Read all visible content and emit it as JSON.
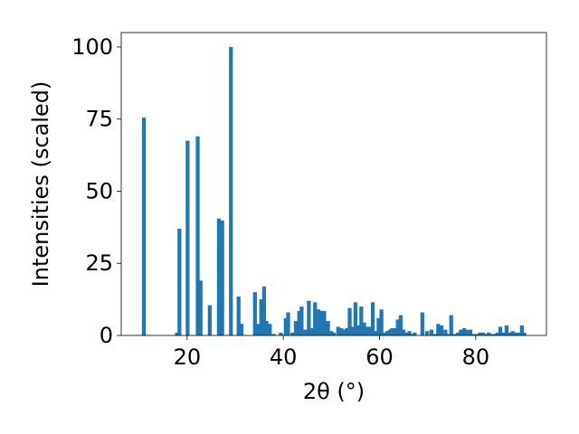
{
  "chart_data": {
    "type": "bar",
    "title": "",
    "xlabel": "2θ (°)",
    "ylabel": "Intensities (scaled)",
    "xlim": [
      6.3,
      94.7
    ],
    "ylim": [
      0,
      105
    ],
    "xticks": [
      20,
      40,
      60,
      80
    ],
    "yticks": [
      0,
      25,
      50,
      75,
      100
    ],
    "bar_width": 0.8,
    "color": "#1f77b4",
    "grid": false,
    "legend": "none",
    "x": [
      11.0,
      17.9,
      18.4,
      20.1,
      22.2,
      22.8,
      24.7,
      26.6,
      27.3,
      29.1,
      30.7,
      31.3,
      34.1,
      34.8,
      35.4,
      36.0,
      36.5,
      37.2,
      38.0,
      39.5,
      40.5,
      41.0,
      41.9,
      42.6,
      43.3,
      43.8,
      44.6,
      45.3,
      45.9,
      46.6,
      47.3,
      47.9,
      48.5,
      49.3,
      50.0,
      50.5,
      51.4,
      52.1,
      52.7,
      53.2,
      53.8,
      54.4,
      55.0,
      55.6,
      56.2,
      56.8,
      57.4,
      58.0,
      58.6,
      59.2,
      59.8,
      60.4,
      61.0,
      61.6,
      62.1,
      62.6,
      63.2,
      63.8,
      64.4,
      65.0,
      65.6,
      66.2,
      66.7,
      67.3,
      68.9,
      69.9,
      70.8,
      71.6,
      72.2,
      72.9,
      73.7,
      74.3,
      74.9,
      75.5,
      76.3,
      76.9,
      77.6,
      78.1,
      78.9,
      79.6,
      80.3,
      80.9,
      81.5,
      82.1,
      82.7,
      83.3,
      83.9,
      84.5,
      85.1,
      85.7,
      86.4,
      87.1,
      87.7,
      88.3,
      88.9,
      89.6,
      90.1
    ],
    "values": [
      75.5,
      1.0,
      37.0,
      67.5,
      69.0,
      19.0,
      10.5,
      40.5,
      39.8,
      100.0,
      13.5,
      4.0,
      15.0,
      4.0,
      12.5,
      17.0,
      5.0,
      4.0,
      0.5,
      1.0,
      6.0,
      8.0,
      1.0,
      5.0,
      8.5,
      10.0,
      2.0,
      12.0,
      2.5,
      11.5,
      9.0,
      8.5,
      8.5,
      5.0,
      1.5,
      1.0,
      3.0,
      2.5,
      2.0,
      2.5,
      9.5,
      3.0,
      11.5,
      3.5,
      10.0,
      4.5,
      3.0,
      3.0,
      11.5,
      1.5,
      6.0,
      9.0,
      1.0,
      1.5,
      2.0,
      2.5,
      2.5,
      5.5,
      7.0,
      2.0,
      1.0,
      1.5,
      0.5,
      1.0,
      8.0,
      1.5,
      2.0,
      0.5,
      4.0,
      3.5,
      2.0,
      0.5,
      7.0,
      0.5,
      1.0,
      2.0,
      2.5,
      2.0,
      2.0,
      0.5,
      0.5,
      1.0,
      1.0,
      0.5,
      1.0,
      0.5,
      0.5,
      1.0,
      3.0,
      1.0,
      3.5,
      1.0,
      1.5,
      1.0,
      1.0,
      3.5,
      1.0
    ]
  }
}
